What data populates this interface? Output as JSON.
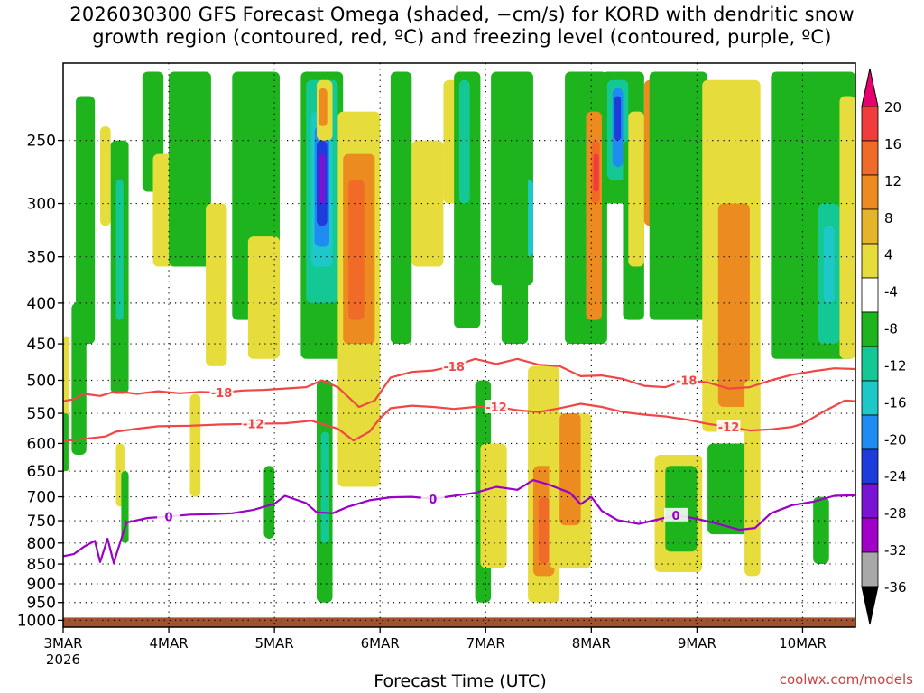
{
  "title_line1": "2026030300 GFS Forecast Omega (shaded, −cm/s) for KORD with dendritic snow",
  "title_line2": "growth region (contoured, red, ºC) and freezing level (contoured, purple, ºC)",
  "credit": "coolwx.com/models",
  "chart_data": {
    "type": "heatmap",
    "xlabel": "Forecast Time (UTC)",
    "x_ticks": [
      "3MAR",
      "4MAR",
      "5MAR",
      "6MAR",
      "7MAR",
      "8MAR",
      "9MAR",
      "10MAR"
    ],
    "x_year": "2026",
    "x_range_days": [
      0,
      7.5
    ],
    "y_ticks": [
      250,
      300,
      350,
      400,
      450,
      500,
      550,
      600,
      650,
      700,
      750,
      800,
      850,
      900,
      950,
      1000
    ],
    "y_range_hpa": [
      200,
      1020
    ],
    "grid": true,
    "colorbar": {
      "labels": [
        "20",
        "16",
        "12",
        "8",
        "4",
        "-4",
        "-8",
        "-12",
        "-16",
        "-20",
        "-24",
        "-28",
        "-32",
        "-36"
      ],
      "colors": [
        "#e8006e",
        "#f03c3c",
        "#f06a28",
        "#ec8c20",
        "#e6b428",
        "#e6dc3c",
        "#ffffff",
        "#1eb41e",
        "#14c896",
        "#1ec8c8",
        "#1e8cf0",
        "#1e3cdc",
        "#7814d2",
        "#a000c8",
        "#a8a8a8",
        "#000000"
      ]
    },
    "contour_lines": [
      {
        "label": "-18",
        "color": "#f04646",
        "points": [
          [
            0,
            531
          ],
          [
            0.1,
            528
          ],
          [
            0.2,
            520
          ],
          [
            0.35,
            523
          ],
          [
            0.5,
            516
          ],
          [
            0.7,
            520
          ],
          [
            0.9,
            516
          ],
          [
            1.1,
            519
          ],
          [
            1.3,
            517
          ],
          [
            1.5,
            518
          ],
          [
            1.7,
            515
          ],
          [
            1.9,
            514
          ],
          [
            2.1,
            512
          ],
          [
            2.3,
            510
          ],
          [
            2.45,
            500
          ],
          [
            2.6,
            510
          ],
          [
            2.8,
            540
          ],
          [
            2.95,
            530
          ],
          [
            3.1,
            496
          ],
          [
            3.3,
            488
          ],
          [
            3.5,
            486
          ],
          [
            3.7,
            480
          ],
          [
            3.9,
            470
          ],
          [
            4.1,
            477
          ],
          [
            4.3,
            470
          ],
          [
            4.5,
            478
          ],
          [
            4.7,
            480
          ],
          [
            4.9,
            494
          ],
          [
            5.1,
            493
          ],
          [
            5.3,
            498
          ],
          [
            5.5,
            508
          ],
          [
            5.7,
            510
          ],
          [
            5.9,
            500
          ],
          [
            6.1,
            503
          ],
          [
            6.3,
            512
          ],
          [
            6.5,
            510
          ],
          [
            6.7,
            500
          ],
          [
            6.9,
            492
          ],
          [
            7.1,
            487
          ],
          [
            7.3,
            483
          ],
          [
            7.5,
            484
          ]
        ]
      },
      {
        "label": "-12",
        "color": "#f04646",
        "points": [
          [
            0,
            596
          ],
          [
            0.2,
            592
          ],
          [
            0.4,
            588
          ],
          [
            0.5,
            580
          ],
          [
            0.7,
            575
          ],
          [
            0.9,
            571
          ],
          [
            1.2,
            570
          ],
          [
            1.5,
            568
          ],
          [
            1.8,
            567
          ],
          [
            2.1,
            566
          ],
          [
            2.35,
            562
          ],
          [
            2.6,
            575
          ],
          [
            2.75,
            595
          ],
          [
            2.9,
            580
          ],
          [
            3.0,
            558
          ],
          [
            3.1,
            542
          ],
          [
            3.3,
            538
          ],
          [
            3.5,
            540
          ],
          [
            3.7,
            543
          ],
          [
            3.9,
            540
          ],
          [
            4.1,
            540
          ],
          [
            4.3,
            545
          ],
          [
            4.5,
            548
          ],
          [
            4.7,
            542
          ],
          [
            4.9,
            535
          ],
          [
            5.1,
            540
          ],
          [
            5.3,
            548
          ],
          [
            5.5,
            552
          ],
          [
            5.7,
            555
          ],
          [
            5.9,
            560
          ],
          [
            6.1,
            567
          ],
          [
            6.3,
            572
          ],
          [
            6.5,
            578
          ],
          [
            6.7,
            576
          ],
          [
            6.9,
            572
          ],
          [
            7.0,
            567
          ],
          [
            7.2,
            547
          ],
          [
            7.4,
            530
          ],
          [
            7.5,
            531
          ]
        ]
      },
      {
        "label": "0",
        "color": "#9a00c8",
        "points": [
          [
            0,
            831
          ],
          [
            0.1,
            826
          ],
          [
            0.2,
            808
          ],
          [
            0.3,
            795
          ],
          [
            0.35,
            845
          ],
          [
            0.42,
            790
          ],
          [
            0.48,
            848
          ],
          [
            0.5,
            830
          ],
          [
            0.6,
            754
          ],
          [
            0.8,
            744
          ],
          [
            1.0,
            741
          ],
          [
            1.2,
            737
          ],
          [
            1.4,
            736
          ],
          [
            1.6,
            734
          ],
          [
            1.8,
            727
          ],
          [
            2.0,
            714
          ],
          [
            2.1,
            698
          ],
          [
            2.3,
            713
          ],
          [
            2.4,
            732
          ],
          [
            2.55,
            734
          ],
          [
            2.7,
            720
          ],
          [
            2.9,
            707
          ],
          [
            3.1,
            701
          ],
          [
            3.3,
            700
          ],
          [
            3.5,
            704
          ],
          [
            3.7,
            698
          ],
          [
            3.9,
            692
          ],
          [
            4.1,
            680
          ],
          [
            4.3,
            686
          ],
          [
            4.45,
            667
          ],
          [
            4.6,
            676
          ],
          [
            4.8,
            692
          ],
          [
            4.9,
            715
          ],
          [
            5.0,
            700
          ],
          [
            5.1,
            729
          ],
          [
            5.25,
            749
          ],
          [
            5.45,
            757
          ],
          [
            5.6,
            749
          ],
          [
            5.8,
            738
          ],
          [
            6.0,
            746
          ],
          [
            6.2,
            757
          ],
          [
            6.4,
            770
          ],
          [
            6.55,
            766
          ],
          [
            6.7,
            734
          ],
          [
            6.9,
            717
          ],
          [
            7.1,
            710
          ],
          [
            7.3,
            698
          ],
          [
            7.5,
            697
          ]
        ]
      }
    ],
    "shaded_regions": [
      {
        "c": "#e6dc3c",
        "x": [
          0.0,
          0.06
        ],
        "p": [
          440,
          650
        ]
      },
      {
        "c": "#1eb41e",
        "x": [
          0.0,
          0.05
        ],
        "p": [
          550,
          650
        ]
      },
      {
        "c": "#1eb41e",
        "x": [
          0.08,
          0.22
        ],
        "p": [
          400,
          620
        ]
      },
      {
        "c": "#1eb41e",
        "x": [
          0.12,
          0.3
        ],
        "p": [
          220,
          450
        ]
      },
      {
        "c": "#e6dc3c",
        "x": [
          0.35,
          0.45
        ],
        "p": [
          240,
          320
        ]
      },
      {
        "c": "#1eb41e",
        "x": [
          0.45,
          0.62
        ],
        "p": [
          250,
          520
        ]
      },
      {
        "c": "#14c896",
        "x": [
          0.5,
          0.57
        ],
        "p": [
          280,
          420
        ]
      },
      {
        "c": "#e6dc3c",
        "x": [
          0.5,
          0.58
        ],
        "p": [
          600,
          720
        ]
      },
      {
        "c": "#1eb41e",
        "x": [
          0.55,
          0.62
        ],
        "p": [
          650,
          800
        ]
      },
      {
        "c": "#1eb41e",
        "x": [
          0.75,
          0.95
        ],
        "p": [
          205,
          290
        ]
      },
      {
        "c": "#e6dc3c",
        "x": [
          0.85,
          1.05
        ],
        "p": [
          260,
          360
        ]
      },
      {
        "c": "#1eb41e",
        "x": [
          1.0,
          1.4
        ],
        "p": [
          205,
          360
        ]
      },
      {
        "c": "#e6dc3c",
        "x": [
          1.2,
          1.3
        ],
        "p": [
          520,
          700
        ]
      },
      {
        "c": "#e6dc3c",
        "x": [
          1.35,
          1.55
        ],
        "p": [
          300,
          480
        ]
      },
      {
        "c": "#1eb41e",
        "x": [
          1.6,
          2.05
        ],
        "p": [
          205,
          420
        ]
      },
      {
        "c": "#e6dc3c",
        "x": [
          1.75,
          2.05
        ],
        "p": [
          330,
          470
        ]
      },
      {
        "c": "#1eb41e",
        "x": [
          1.9,
          2.0
        ],
        "p": [
          640,
          790
        ]
      },
      {
        "c": "#1eb41e",
        "x": [
          2.25,
          2.65
        ],
        "p": [
          205,
          470
        ]
      },
      {
        "c": "#14c896",
        "x": [
          2.3,
          2.6
        ],
        "p": [
          210,
          400
        ]
      },
      {
        "c": "#1ec8c8",
        "x": [
          2.35,
          2.55
        ],
        "p": [
          230,
          360
        ]
      },
      {
        "c": "#1e8cf0",
        "x": [
          2.38,
          2.52
        ],
        "p": [
          240,
          340
        ]
      },
      {
        "c": "#1e3cdc",
        "x": [
          2.4,
          2.5
        ],
        "p": [
          250,
          320
        ]
      },
      {
        "c": "#7814d2",
        "x": [
          2.42,
          2.48
        ],
        "p": [
          260,
          300
        ]
      },
      {
        "c": "#e6dc3c",
        "x": [
          2.4,
          2.55
        ],
        "p": [
          210,
          250
        ]
      },
      {
        "c": "#ec8c20",
        "x": [
          2.42,
          2.5
        ],
        "p": [
          215,
          240
        ]
      },
      {
        "c": "#1eb41e",
        "x": [
          2.4,
          2.55
        ],
        "p": [
          500,
          950
        ]
      },
      {
        "c": "#14c896",
        "x": [
          2.44,
          2.52
        ],
        "p": [
          580,
          800
        ]
      },
      {
        "c": "#e6dc3c",
        "x": [
          2.6,
          3.0
        ],
        "p": [
          230,
          680
        ]
      },
      {
        "c": "#ec8c20",
        "x": [
          2.65,
          2.95
        ],
        "p": [
          260,
          450
        ]
      },
      {
        "c": "#f06a28",
        "x": [
          2.7,
          2.85
        ],
        "p": [
          280,
          420
        ]
      },
      {
        "c": "#e6dc3c",
        "x": [
          2.8,
          3.0
        ],
        "p": [
          560,
          680
        ]
      },
      {
        "c": "#1eb41e",
        "x": [
          3.1,
          3.3
        ],
        "p": [
          205,
          450
        ]
      },
      {
        "c": "#e6dc3c",
        "x": [
          3.3,
          3.6
        ],
        "p": [
          250,
          360
        ]
      },
      {
        "c": "#e6dc3c",
        "x": [
          3.6,
          3.9
        ],
        "p": [
          210,
          300
        ]
      },
      {
        "c": "#1eb41e",
        "x": [
          3.7,
          3.95
        ],
        "p": [
          205,
          430
        ]
      },
      {
        "c": "#14c896",
        "x": [
          3.75,
          3.85
        ],
        "p": [
          210,
          300
        ]
      },
      {
        "c": "#1eb41e",
        "x": [
          3.9,
          4.05
        ],
        "p": [
          500,
          950
        ]
      },
      {
        "c": "#e6dc3c",
        "x": [
          3.95,
          4.2
        ],
        "p": [
          600,
          860
        ]
      },
      {
        "c": "#1eb41e",
        "x": [
          4.05,
          4.45
        ],
        "p": [
          205,
          380
        ]
      },
      {
        "c": "#1ec8c8",
        "x": [
          4.25,
          4.45
        ],
        "p": [
          280,
          350
        ]
      },
      {
        "c": "#1eb41e",
        "x": [
          4.15,
          4.4
        ],
        "p": [
          230,
          450
        ]
      },
      {
        "c": "#e6dc3c",
        "x": [
          4.4,
          4.7
        ],
        "p": [
          480,
          950
        ]
      },
      {
        "c": "#ec8c20",
        "x": [
          4.45,
          4.65
        ],
        "p": [
          640,
          880
        ]
      },
      {
        "c": "#f06a28",
        "x": [
          4.5,
          4.6
        ],
        "p": [
          700,
          850
        ]
      },
      {
        "c": "#e6dc3c",
        "x": [
          4.6,
          5.0
        ],
        "p": [
          550,
          860
        ]
      },
      {
        "c": "#ec8c20",
        "x": [
          4.7,
          4.9
        ],
        "p": [
          550,
          760
        ]
      },
      {
        "c": "#1eb41e",
        "x": [
          4.75,
          5.15
        ],
        "p": [
          205,
          450
        ]
      },
      {
        "c": "#ec8c20",
        "x": [
          4.95,
          5.1
        ],
        "p": [
          230,
          420
        ]
      },
      {
        "c": "#f06a28",
        "x": [
          5.0,
          5.08
        ],
        "p": [
          250,
          300
        ]
      },
      {
        "c": "#f03c3c",
        "x": [
          5.02,
          5.07
        ],
        "p": [
          260,
          290
        ]
      },
      {
        "c": "#1eb41e",
        "x": [
          5.1,
          5.5
        ],
        "p": [
          205,
          300
        ]
      },
      {
        "c": "#14c896",
        "x": [
          5.15,
          5.35
        ],
        "p": [
          210,
          280
        ]
      },
      {
        "c": "#1e8cf0",
        "x": [
          5.2,
          5.3
        ],
        "p": [
          215,
          270
        ]
      },
      {
        "c": "#1e3cdc",
        "x": [
          5.22,
          5.28
        ],
        "p": [
          220,
          250
        ]
      },
      {
        "c": "#1eb41e",
        "x": [
          5.3,
          5.5
        ],
        "p": [
          250,
          420
        ]
      },
      {
        "c": "#e6dc3c",
        "x": [
          5.35,
          5.5
        ],
        "p": [
          230,
          360
        ]
      },
      {
        "c": "#ec8c20",
        "x": [
          5.5,
          5.65
        ],
        "p": [
          210,
          320
        ]
      },
      {
        "c": "#1eb41e",
        "x": [
          5.55,
          6.1
        ],
        "p": [
          205,
          420
        ]
      },
      {
        "c": "#e6dc3c",
        "x": [
          5.6,
          6.05
        ],
        "p": [
          620,
          870
        ]
      },
      {
        "c": "#1eb41e",
        "x": [
          5.7,
          6.0
        ],
        "p": [
          640,
          820
        ]
      },
      {
        "c": "#e6dc3c",
        "x": [
          6.05,
          6.6
        ],
        "p": [
          210,
          580
        ]
      },
      {
        "c": "#ec8c20",
        "x": [
          6.2,
          6.5
        ],
        "p": [
          300,
          540
        ]
      },
      {
        "c": "#1eb41e",
        "x": [
          6.1,
          6.5
        ],
        "p": [
          600,
          780
        ]
      },
      {
        "c": "#e6dc3c",
        "x": [
          6.45,
          6.6
        ],
        "p": [
          500,
          880
        ]
      },
      {
        "c": "#1eb41e",
        "x": [
          6.7,
          7.5
        ],
        "p": [
          205,
          470
        ]
      },
      {
        "c": "#14c896",
        "x": [
          7.15,
          7.35
        ],
        "p": [
          300,
          450
        ]
      },
      {
        "c": "#1ec8c8",
        "x": [
          7.2,
          7.3
        ],
        "p": [
          320,
          400
        ]
      },
      {
        "c": "#1eb41e",
        "x": [
          7.1,
          7.25
        ],
        "p": [
          700,
          850
        ]
      },
      {
        "c": "#e6dc3c",
        "x": [
          7.35,
          7.5
        ],
        "p": [
          220,
          470
        ]
      }
    ]
  }
}
